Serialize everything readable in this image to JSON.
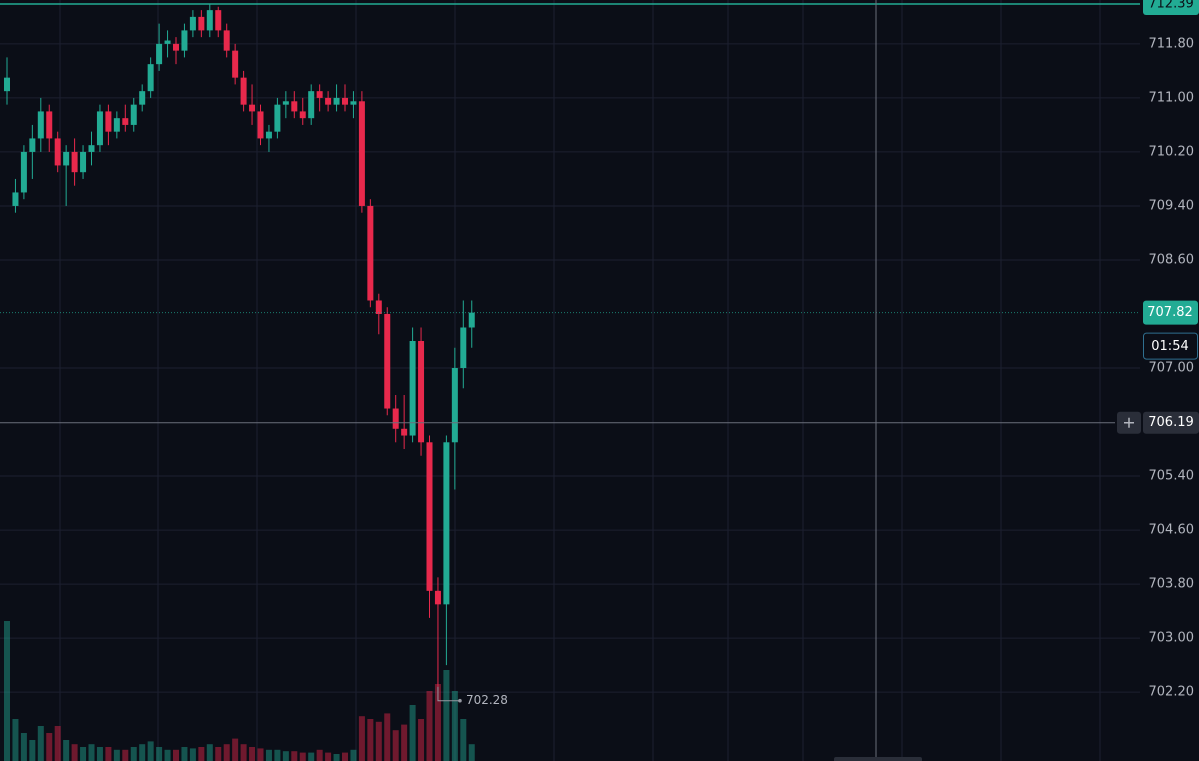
{
  "chart_data": {
    "type": "candlestick",
    "ylim": [
      701.18,
      712.45
    ],
    "yticks": [
      {
        "value": 711.8,
        "label": "711.80"
      },
      {
        "value": 711,
        "label": "711.00"
      },
      {
        "value": 710.2,
        "label": "710.20"
      },
      {
        "value": 709.4,
        "label": "709.40"
      },
      {
        "value": 708.6,
        "label": "708.60"
      },
      {
        "value": 707,
        "label": "707.00"
      },
      {
        "value": 705.4,
        "label": "705.40"
      },
      {
        "value": 704.6,
        "label": "704.60"
      },
      {
        "value": 703.8,
        "label": "703.80"
      },
      {
        "value": 703,
        "label": "703.00"
      },
      {
        "value": 702.2,
        "label": "702.20"
      }
    ],
    "grid": true,
    "up_color": "#22ab94",
    "down_color": "#e8294c",
    "series": {
      "open": [
        711.1,
        709.4,
        709.6,
        710.2,
        710.4,
        710.8,
        710.4,
        710.0,
        710.2,
        709.9,
        710.2,
        710.3,
        710.8,
        710.5,
        710.7,
        710.6,
        710.9,
        711.1,
        711.5,
        711.8,
        711.8,
        711.7,
        712.0,
        712.2,
        712.0,
        712.3,
        712.0,
        711.7,
        711.3,
        710.9,
        710.8,
        710.4,
        710.5,
        710.9,
        710.95,
        710.8,
        710.7,
        711.1,
        711.0,
        710.9,
        711.0,
        710.9,
        710.95,
        709.4,
        708.0,
        707.8,
        706.4,
        706.1,
        706.0,
        707.4,
        705.9,
        703.7,
        703.5,
        705.9,
        707.0,
        707.6
      ],
      "high": [
        711.6,
        709.8,
        710.3,
        710.6,
        711.0,
        710.9,
        710.5,
        710.3,
        710.4,
        710.3,
        710.5,
        710.9,
        710.9,
        710.8,
        710.9,
        711.0,
        711.2,
        711.6,
        712.1,
        712.0,
        711.9,
        712.1,
        712.3,
        712.3,
        712.39,
        712.35,
        712.1,
        711.8,
        711.4,
        711.2,
        710.9,
        710.6,
        711.0,
        711.1,
        711.1,
        711.0,
        711.2,
        711.2,
        711.1,
        711.2,
        711.2,
        711.1,
        711.1,
        709.5,
        708.1,
        707.9,
        706.6,
        706.6,
        707.6,
        707.6,
        706.0,
        703.9,
        706.0,
        707.3,
        708.0,
        708.0
      ],
      "low": [
        710.9,
        709.3,
        709.5,
        709.8,
        710.2,
        710.2,
        709.9,
        709.4,
        709.7,
        709.8,
        710.0,
        710.2,
        710.3,
        710.4,
        710.5,
        710.5,
        710.8,
        711.0,
        711.4,
        711.6,
        711.5,
        711.6,
        711.9,
        711.9,
        711.9,
        711.9,
        711.6,
        711.2,
        710.8,
        710.6,
        710.3,
        710.2,
        710.4,
        710.7,
        710.7,
        710.6,
        710.6,
        710.8,
        710.8,
        710.8,
        710.8,
        710.7,
        709.3,
        707.9,
        707.5,
        706.3,
        705.9,
        705.8,
        705.9,
        705.7,
        703.3,
        702.28,
        702.6,
        705.2,
        706.7,
        707.3
      ],
      "close": [
        711.3,
        709.6,
        710.2,
        710.4,
        710.8,
        710.4,
        710.0,
        710.2,
        709.9,
        710.2,
        710.3,
        710.8,
        710.5,
        710.7,
        710.6,
        710.9,
        711.1,
        711.5,
        711.8,
        711.85,
        711.7,
        712.0,
        712.2,
        712.0,
        712.3,
        712.0,
        711.7,
        711.3,
        710.9,
        710.8,
        710.4,
        710.5,
        710.9,
        710.95,
        710.8,
        710.7,
        711.1,
        711.0,
        710.9,
        711.0,
        710.9,
        710.95,
        709.4,
        708.0,
        707.8,
        706.4,
        706.1,
        706.0,
        707.4,
        705.9,
        703.7,
        703.5,
        705.9,
        707.0,
        707.6,
        707.82
      ],
      "volume": [
        100,
        30,
        20,
        15,
        25,
        20,
        25,
        15,
        12,
        10,
        12,
        10,
        10,
        8,
        8,
        10,
        12,
        14,
        10,
        8,
        8,
        10,
        9,
        10,
        12,
        10,
        12,
        16,
        12,
        10,
        9,
        8,
        8,
        7,
        7,
        6,
        6,
        8,
        6,
        5,
        6,
        8,
        32,
        30,
        28,
        34,
        22,
        26,
        40,
        30,
        50,
        55,
        65,
        50,
        30,
        12
      ]
    },
    "high_line": 712.39,
    "last_price": 707.82,
    "countdown": "01:54",
    "crosshair_price": 706.19,
    "low_label": 702.28
  }
}
